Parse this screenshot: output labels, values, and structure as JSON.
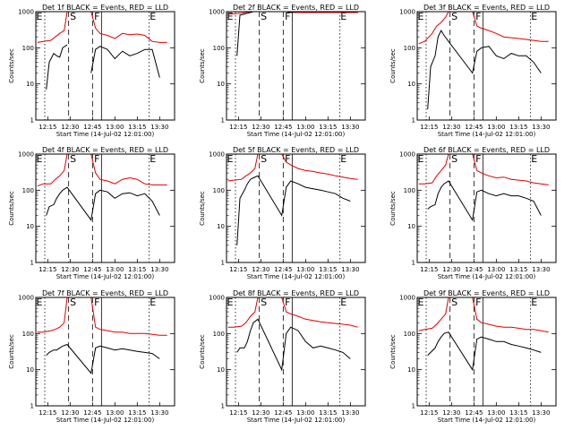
{
  "colors": {
    "events": "#000000",
    "lld": "#e00000",
    "background": "#ffffff"
  },
  "common": {
    "xlabel": "Start Time (14-Jul-02 12:01:00)",
    "ylabel": "Counts/sec",
    "y_ticks": [
      "1",
      "10",
      "100",
      "1000"
    ],
    "x_ticks": [
      "12:15",
      "12:30",
      "12:45",
      "13:00",
      "13:15",
      "13:30"
    ],
    "markers": [
      "E",
      "S",
      "F",
      "E"
    ]
  },
  "chart_data": [
    {
      "type": "line",
      "title": "Det 1f BLACK = Events, RED = LLD",
      "y_scale": "log",
      "ylim": [
        1,
        1000
      ],
      "xlim": [
        "12:07",
        "13:40"
      ],
      "series": [
        {
          "name": "Events",
          "x": [
            "12:14",
            "12:16",
            "12:19",
            "12:21",
            "12:23",
            "12:25",
            "12:28",
            "12:36",
            "12:44",
            "12:47",
            "12:50",
            "12:55",
            "13:00",
            "13:05",
            "13:10",
            "13:15",
            "13:20",
            "13:25",
            "13:30"
          ],
          "y": [
            7,
            40,
            70,
            60,
            55,
            100,
            120,
            null,
            20,
            90,
            110,
            90,
            50,
            80,
            60,
            70,
            90,
            90,
            15
          ]
        },
        {
          "name": "LLD",
          "x": [
            "12:08",
            "12:12",
            "12:17",
            "12:20",
            "12:23",
            "12:26",
            "12:28",
            "12:36",
            "12:44",
            "12:47",
            "12:50",
            "12:55",
            "13:00",
            "13:05",
            "13:10",
            "13:15",
            "13:20",
            "13:25",
            "13:30",
            "13:35"
          ],
          "y": [
            140,
            150,
            160,
            200,
            250,
            300,
            1000,
            1000,
            1000,
            350,
            250,
            220,
            180,
            250,
            230,
            240,
            220,
            150,
            140,
            140
          ]
        }
      ]
    },
    {
      "type": "line",
      "title": "Det 2f BLACK = Events, RED = LLD",
      "y_scale": "log",
      "ylim": [
        1,
        1000
      ],
      "xlim": [
        "12:07",
        "13:40"
      ],
      "series": [
        {
          "name": "Events",
          "x": [
            "12:14",
            "12:16",
            "12:19",
            "12:21",
            "12:23",
            "12:25",
            "12:28",
            "12:44",
            "12:47",
            "12:50",
            "12:55",
            "13:00",
            "13:05",
            "13:10",
            "13:15",
            "13:20",
            "13:25",
            "13:30",
            "13:35"
          ],
          "y": [
            60,
            800,
            850,
            900,
            950,
            1000,
            1000,
            1000,
            1000,
            950,
            950,
            950,
            950,
            950,
            950,
            950,
            950,
            950,
            950
          ]
        },
        {
          "name": "LLD",
          "x": [
            "12:08",
            "12:12",
            "12:17",
            "12:20",
            "12:23",
            "12:26",
            "12:28",
            "12:36",
            "12:44",
            "12:47",
            "12:50",
            "12:55",
            "13:00",
            "13:05",
            "13:10",
            "13:15",
            "13:20",
            "13:25",
            "13:30",
            "13:35"
          ],
          "y": [
            850,
            870,
            900,
            950,
            1000,
            1000,
            1000,
            1000,
            1000,
            1000,
            1000,
            950,
            950,
            950,
            950,
            950,
            950,
            950,
            950,
            950
          ]
        }
      ]
    },
    {
      "type": "line",
      "title": "Det 3f BLACK = Events, RED = LLD",
      "y_scale": "log",
      "ylim": [
        1,
        1000
      ],
      "xlim": [
        "12:07",
        "13:40"
      ],
      "series": [
        {
          "name": "Events",
          "x": [
            "12:14",
            "12:16",
            "12:19",
            "12:21",
            "12:23",
            "12:25",
            "12:28",
            "12:44",
            "12:47",
            "12:50",
            "12:55",
            "13:00",
            "13:05",
            "13:10",
            "13:15",
            "13:20",
            "13:25",
            "13:30"
          ],
          "y": [
            2,
            30,
            60,
            200,
            300,
            220,
            150,
            20,
            80,
            100,
            110,
            60,
            50,
            70,
            60,
            60,
            40,
            20
          ]
        },
        {
          "name": "LLD",
          "x": [
            "12:08",
            "12:12",
            "12:17",
            "12:20",
            "12:23",
            "12:26",
            "12:28",
            "12:36",
            "12:44",
            "12:47",
            "12:50",
            "12:55",
            "13:00",
            "13:05",
            "13:10",
            "13:15",
            "13:20",
            "13:25",
            "13:30",
            "13:35"
          ],
          "y": [
            130,
            150,
            250,
            400,
            500,
            700,
            1000,
            1000,
            1000,
            400,
            350,
            300,
            250,
            200,
            190,
            180,
            170,
            160,
            150,
            150
          ]
        }
      ]
    },
    {
      "type": "line",
      "title": "Det 4f BLACK = Events, RED = LLD",
      "y_scale": "log",
      "ylim": [
        1,
        1000
      ],
      "xlim": [
        "12:07",
        "13:40"
      ],
      "series": [
        {
          "name": "Events",
          "x": [
            "12:14",
            "12:16",
            "12:19",
            "12:21",
            "12:23",
            "12:25",
            "12:28",
            "12:44",
            "12:47",
            "12:50",
            "12:55",
            "13:00",
            "13:05",
            "13:10",
            "13:15",
            "13:20",
            "13:25",
            "13:30"
          ],
          "y": [
            20,
            35,
            40,
            60,
            80,
            100,
            120,
            15,
            80,
            100,
            90,
            60,
            80,
            85,
            70,
            80,
            50,
            20
          ]
        },
        {
          "name": "LLD",
          "x": [
            "12:08",
            "12:12",
            "12:17",
            "12:20",
            "12:23",
            "12:26",
            "12:28",
            "12:36",
            "12:44",
            "12:47",
            "12:50",
            "12:55",
            "13:00",
            "13:05",
            "13:10",
            "13:15",
            "13:20",
            "13:25",
            "13:30",
            "13:35"
          ],
          "y": [
            130,
            150,
            150,
            200,
            250,
            350,
            1000,
            1000,
            1000,
            300,
            200,
            180,
            150,
            200,
            220,
            200,
            150,
            140,
            140,
            140
          ]
        }
      ]
    },
    {
      "type": "line",
      "title": "Det 5f BLACK = Events, RED = LLD",
      "y_scale": "log",
      "ylim": [
        1,
        1000
      ],
      "xlim": [
        "12:07",
        "13:40"
      ],
      "series": [
        {
          "name": "Events",
          "x": [
            "12:14",
            "12:16",
            "12:19",
            "12:21",
            "12:23",
            "12:25",
            "12:28",
            "12:44",
            "12:47",
            "12:50",
            "12:55",
            "13:00",
            "13:05",
            "13:10",
            "13:15",
            "13:20",
            "13:25",
            "13:30"
          ],
          "y": [
            3,
            60,
            100,
            150,
            200,
            220,
            250,
            20,
            120,
            180,
            150,
            120,
            110,
            100,
            90,
            80,
            60,
            50
          ]
        },
        {
          "name": "LLD",
          "x": [
            "12:08",
            "12:12",
            "12:17",
            "12:20",
            "12:23",
            "12:26",
            "12:28",
            "12:36",
            "12:44",
            "12:47",
            "12:50",
            "12:55",
            "13:00",
            "13:05",
            "13:10",
            "13:15",
            "13:20",
            "13:25",
            "13:30",
            "13:35"
          ],
          "y": [
            180,
            190,
            200,
            250,
            300,
            400,
            1000,
            1000,
            1000,
            600,
            500,
            400,
            350,
            330,
            300,
            280,
            250,
            230,
            210,
            200
          ]
        }
      ]
    },
    {
      "type": "line",
      "title": "Det 6f BLACK = Events, RED = LLD",
      "y_scale": "log",
      "ylim": [
        1,
        1000
      ],
      "xlim": [
        "12:07",
        "13:40"
      ],
      "series": [
        {
          "name": "Events",
          "x": [
            "12:14",
            "12:16",
            "12:19",
            "12:21",
            "12:23",
            "12:25",
            "12:28",
            "12:44",
            "12:47",
            "12:50",
            "12:55",
            "13:00",
            "13:05",
            "13:10",
            "13:15",
            "13:20",
            "13:25",
            "13:30"
          ],
          "y": [
            30,
            35,
            40,
            80,
            120,
            150,
            180,
            15,
            90,
            100,
            80,
            70,
            80,
            70,
            70,
            60,
            50,
            20
          ]
        },
        {
          "name": "LLD",
          "x": [
            "12:08",
            "12:12",
            "12:17",
            "12:20",
            "12:23",
            "12:26",
            "12:28",
            "12:36",
            "12:44",
            "12:47",
            "12:50",
            "12:55",
            "13:00",
            "13:05",
            "13:10",
            "13:15",
            "13:20",
            "13:25",
            "13:30",
            "13:35"
          ],
          "y": [
            150,
            150,
            160,
            250,
            350,
            500,
            1000,
            1000,
            1000,
            350,
            300,
            250,
            220,
            230,
            200,
            190,
            180,
            160,
            150,
            140
          ]
        }
      ]
    },
    {
      "type": "line",
      "title": "Det 7f BLACK = Events, RED = LLD",
      "y_scale": "log",
      "ylim": [
        1,
        1000
      ],
      "xlim": [
        "12:07",
        "13:40"
      ],
      "series": [
        {
          "name": "Events",
          "x": [
            "12:14",
            "12:16",
            "12:19",
            "12:21",
            "12:23",
            "12:25",
            "12:28",
            "12:44",
            "12:47",
            "12:50",
            "12:55",
            "13:00",
            "13:05",
            "13:10",
            "13:15",
            "13:20",
            "13:25",
            "13:30"
          ],
          "y": [
            25,
            30,
            35,
            35,
            40,
            45,
            50,
            8,
            40,
            45,
            40,
            35,
            38,
            35,
            32,
            30,
            28,
            20
          ]
        },
        {
          "name": "LLD",
          "x": [
            "12:08",
            "12:12",
            "12:17",
            "12:20",
            "12:23",
            "12:26",
            "12:28",
            "12:36",
            "12:44",
            "12:47",
            "12:50",
            "12:55",
            "13:00",
            "13:05",
            "13:10",
            "13:15",
            "13:20",
            "13:25",
            "13:30",
            "13:35"
          ],
          "y": [
            110,
            110,
            120,
            130,
            150,
            200,
            1000,
            1000,
            1000,
            150,
            130,
            120,
            110,
            110,
            100,
            100,
            100,
            95,
            90,
            90
          ]
        }
      ]
    },
    {
      "type": "line",
      "title": "Det 8f BLACK = Events, RED = LLD",
      "y_scale": "log",
      "ylim": [
        1,
        1000
      ],
      "xlim": [
        "12:07",
        "13:40"
      ],
      "series": [
        {
          "name": "Events",
          "x": [
            "12:14",
            "12:16",
            "12:19",
            "12:21",
            "12:23",
            "12:25",
            "12:28",
            "12:44",
            "12:47",
            "12:50",
            "12:55",
            "13:00",
            "13:05",
            "13:10",
            "13:15",
            "13:20",
            "13:25",
            "13:30"
          ],
          "y": [
            30,
            40,
            40,
            60,
            120,
            200,
            250,
            10,
            100,
            150,
            120,
            60,
            40,
            45,
            40,
            35,
            30,
            20
          ]
        },
        {
          "name": "LLD",
          "x": [
            "12:08",
            "12:12",
            "12:17",
            "12:20",
            "12:23",
            "12:26",
            "12:28",
            "12:36",
            "12:44",
            "12:47",
            "12:50",
            "12:55",
            "13:00",
            "13:05",
            "13:10",
            "13:15",
            "13:20",
            "13:25",
            "13:30",
            "13:35"
          ],
          "y": [
            150,
            150,
            160,
            200,
            300,
            400,
            1000,
            1000,
            1000,
            400,
            350,
            300,
            250,
            230,
            210,
            200,
            190,
            180,
            170,
            150
          ]
        }
      ]
    },
    {
      "type": "line",
      "title": "Det 9f BLACK = Events, RED = LLD",
      "y_scale": "log",
      "ylim": [
        1,
        1000
      ],
      "xlim": [
        "12:07",
        "13:40"
      ],
      "series": [
        {
          "name": "Events",
          "x": [
            "12:14",
            "12:16",
            "12:19",
            "12:21",
            "12:23",
            "12:25",
            "12:28",
            "12:44",
            "12:47",
            "12:50",
            "12:55",
            "13:00",
            "13:05",
            "13:10",
            "13:15",
            "13:20",
            "13:25",
            "13:30"
          ],
          "y": [
            25,
            30,
            40,
            60,
            80,
            100,
            110,
            10,
            70,
            80,
            70,
            60,
            60,
            50,
            45,
            40,
            35,
            30
          ]
        },
        {
          "name": "LLD",
          "x": [
            "12:08",
            "12:12",
            "12:17",
            "12:20",
            "12:23",
            "12:26",
            "12:28",
            "12:36",
            "12:44",
            "12:47",
            "12:50",
            "12:55",
            "13:00",
            "13:05",
            "13:10",
            "13:15",
            "13:20",
            "13:25",
            "13:30",
            "13:35"
          ],
          "y": [
            120,
            130,
            140,
            180,
            250,
            350,
            1000,
            1000,
            1000,
            250,
            200,
            180,
            160,
            150,
            150,
            140,
            130,
            130,
            120,
            110
          ]
        }
      ]
    }
  ]
}
